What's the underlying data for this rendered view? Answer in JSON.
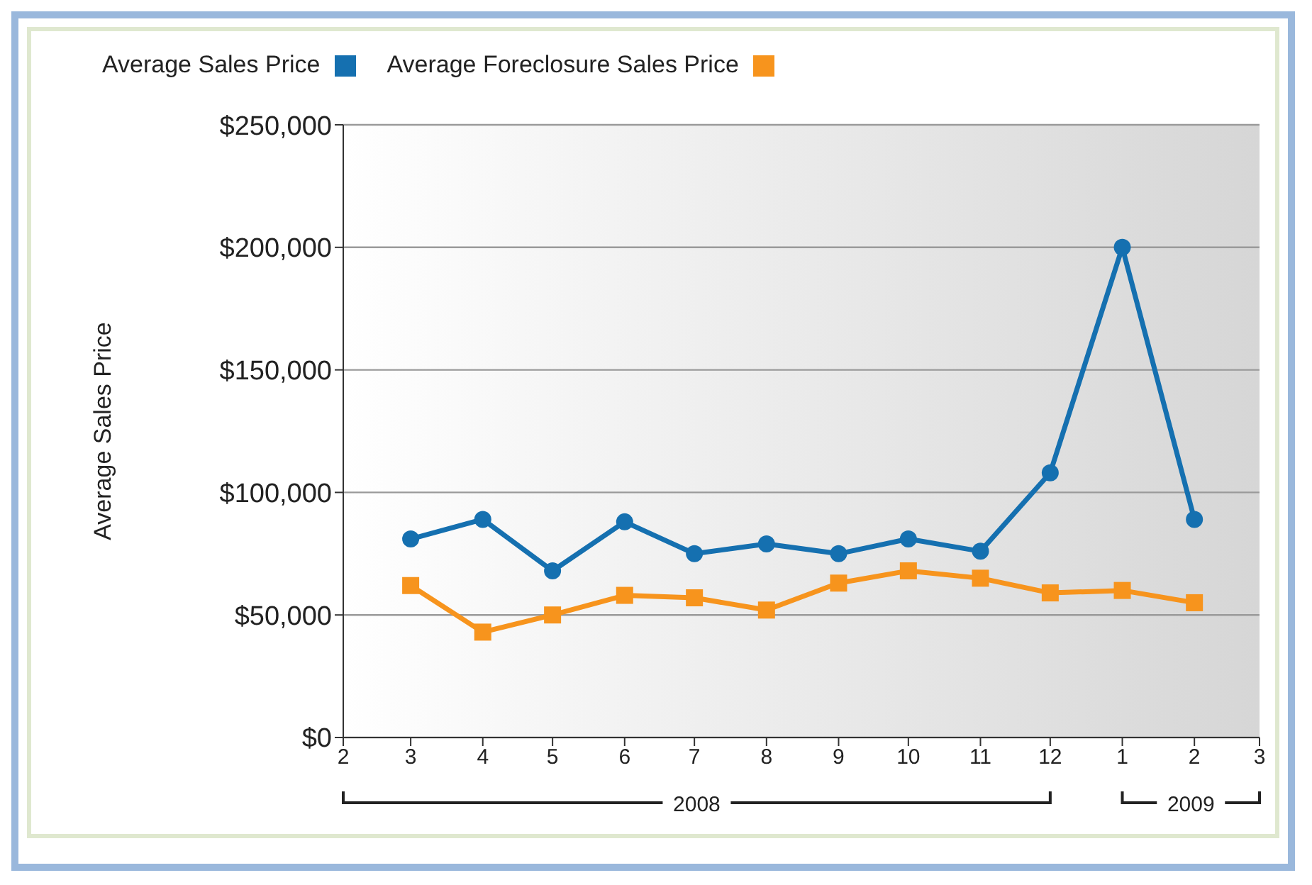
{
  "chart_data": {
    "type": "line",
    "ylabel": "Average Sales Price",
    "x": [
      "2008-03",
      "2008-04",
      "2008-05",
      "2008-06",
      "2008-07",
      "2008-08",
      "2008-09",
      "2008-10",
      "2008-11",
      "2008-12",
      "2009-01",
      "2009-02"
    ],
    "series": [
      {
        "name": "Average Sales Price",
        "color": "#1570b0",
        "marker": "circle",
        "values": [
          81000,
          89000,
          68000,
          88000,
          75000,
          79000,
          75000,
          81000,
          76000,
          108000,
          200000,
          89000
        ]
      },
      {
        "name": "Average Foreclosure Sales Price",
        "color": "#f7941d",
        "marker": "square",
        "values": [
          62000,
          43000,
          50000,
          58000,
          57000,
          52000,
          63000,
          68000,
          65000,
          59000,
          60000,
          55000
        ]
      }
    ],
    "xlim": [
      "2008-02",
      "2009-03"
    ],
    "xticks": [
      {
        "value": "2008-02",
        "label": "2"
      },
      {
        "value": "2008-03",
        "label": "3"
      },
      {
        "value": "2008-04",
        "label": "4"
      },
      {
        "value": "2008-05",
        "label": "5"
      },
      {
        "value": "2008-06",
        "label": "6"
      },
      {
        "value": "2008-07",
        "label": "7"
      },
      {
        "value": "2008-08",
        "label": "8"
      },
      {
        "value": "2008-09",
        "label": "9"
      },
      {
        "value": "2008-10",
        "label": "10"
      },
      {
        "value": "2008-11",
        "label": "11"
      },
      {
        "value": "2008-12",
        "label": "12"
      },
      {
        "value": "2009-01",
        "label": "1"
      },
      {
        "value": "2009-02",
        "label": "2"
      },
      {
        "value": "2009-03",
        "label": "3"
      }
    ],
    "ylim": [
      0,
      250000
    ],
    "yticks": [
      {
        "value": 0,
        "label": "$0"
      },
      {
        "value": 50000,
        "label": "$50,000"
      },
      {
        "value": 100000,
        "label": "$100,000"
      },
      {
        "value": 150000,
        "label": "$150,000"
      },
      {
        "value": 200000,
        "label": "$200,000"
      },
      {
        "value": 250000,
        "label": "$250,000"
      }
    ],
    "annotations": [
      "2008",
      "2009"
    ],
    "grid": "y",
    "legend": "top left",
    "line_style": "solid"
  }
}
